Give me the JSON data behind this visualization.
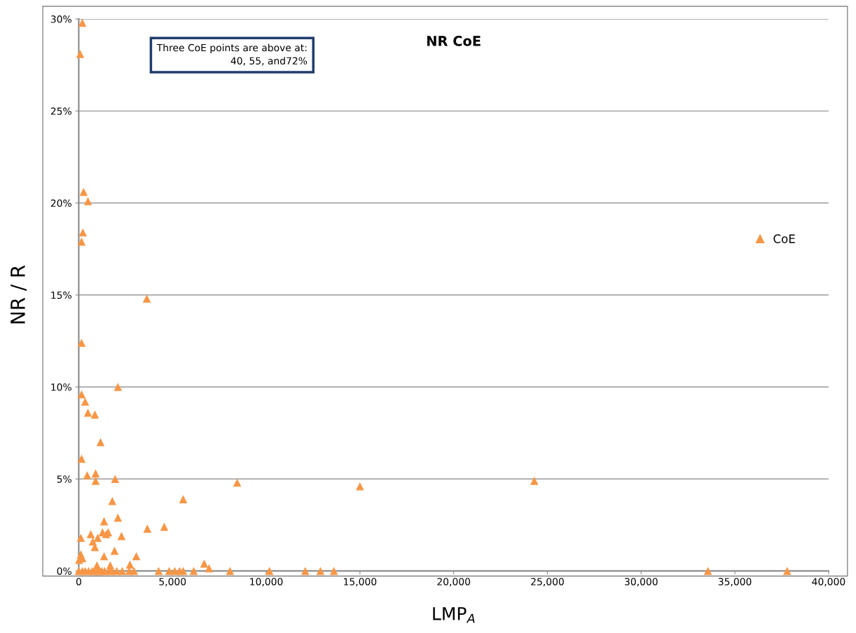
{
  "chart_data": {
    "type": "scatter",
    "title": "NR CoE",
    "xlabel": "LMP$_{A}$",
    "ylabel": "NR / R",
    "annotations": [
      "Three CoE points are above at:\n40, 55, and72%"
    ],
    "xlim": [
      0,
      40000
    ],
    "xticks": [
      0,
      {
        "value": 5000,
        "label": "5,000"
      },
      {
        "value": 10000,
        "label": "10,000"
      },
      {
        "value": 15000,
        "label": "15,000"
      },
      {
        "value": 20000,
        "label": "20,000"
      },
      {
        "value": 25000,
        "label": "25,000"
      },
      {
        "value": 30000,
        "label": "30,000"
      },
      {
        "value": 35000,
        "label": "35,000"
      },
      {
        "value": 40000,
        "label": "40,000"
      }
    ],
    "ylim": [
      0,
      30
    ],
    "yticks": [
      {
        "value": 0,
        "label": "0%"
      },
      {
        "value": 5,
        "label": "5%"
      },
      {
        "value": 10,
        "label": "10%"
      },
      {
        "value": 15,
        "label": "15%"
      },
      {
        "value": 20,
        "label": "20%"
      },
      {
        "value": 25,
        "label": "25%"
      },
      {
        "value": 30,
        "label": "30%"
      }
    ],
    "grid": "y",
    "legend": "right",
    "marker": "triangle",
    "series": [
      {
        "name": "CoE",
        "color": "#f79646",
        "x": [
          190,
          75,
          260,
          490,
          220,
          150,
          3630,
          150,
          2090,
          150,
          340,
          490,
          860,
          1160,
          150,
          450,
          900,
          900,
          1940,
          8450,
          15000,
          24300,
          5570,
          1790,
          2090,
          1350,
          3660,
          4560,
          1270,
          1570,
          1460,
          2280,
          110,
          640,
          1010,
          750,
          860,
          1910,
          1350,
          3070,
          110,
          190,
          20,
          6690,
          6950,
          2730,
          1680,
          970,
          0,
          190,
          340,
          520,
          710,
          820,
          1010,
          1120,
          1230,
          1380,
          1640,
          1750,
          2020,
          2320,
          2690,
          2950,
          4260,
          4820,
          5120,
          5380,
          5570,
          6130,
          8070,
          10170,
          12080,
          12890,
          13610,
          33560,
          37790
        ],
        "values": [
          29.8,
          28.1,
          20.6,
          20.1,
          18.4,
          17.9,
          14.8,
          12.4,
          10.0,
          9.6,
          9.2,
          8.6,
          8.5,
          7.0,
          6.1,
          5.2,
          5.3,
          4.9,
          5.0,
          4.8,
          4.6,
          4.9,
          3.9,
          3.8,
          2.9,
          2.7,
          2.3,
          2.4,
          2.1,
          2.1,
          2.0,
          1.9,
          1.8,
          2.0,
          1.8,
          1.6,
          1.3,
          1.1,
          0.8,
          0.8,
          0.9,
          0.7,
          0.6,
          0.4,
          0.15,
          0.35,
          0.3,
          0.3,
          0,
          0,
          0,
          0,
          0,
          0,
          0,
          0,
          0,
          0,
          0,
          0,
          0,
          0,
          0,
          0,
          0,
          0,
          0,
          0,
          0,
          0,
          0,
          0,
          0,
          0,
          0,
          0,
          0
        ]
      }
    ]
  }
}
